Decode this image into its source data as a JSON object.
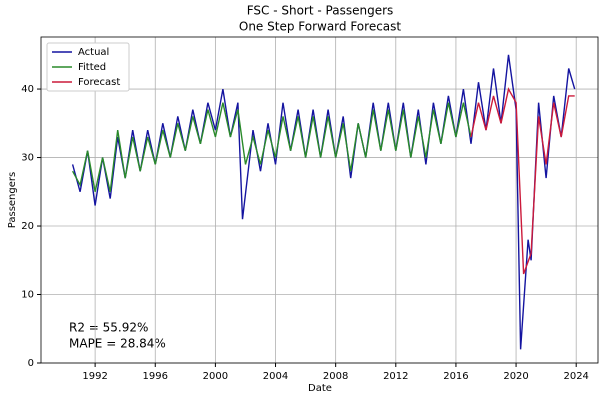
{
  "chart_data": {
    "type": "line",
    "title": "FSC - Short - Passengers",
    "subtitle": "One Step Forward Forecast",
    "x_label": "Date",
    "y_label": "Passengers",
    "xlim": [
      1988.4,
      2025.45
    ],
    "ylim": [
      0,
      47.6
    ],
    "xticks": [
      1992,
      1996,
      2000,
      2004,
      2008,
      2012,
      2016,
      2020,
      2024
    ],
    "yticks": [
      0,
      10,
      20,
      30,
      40
    ],
    "grid": true,
    "legend": "upper left",
    "annotations": [
      "R2 = 55.92%",
      "MAPE = 28.84%"
    ],
    "series": [
      {
        "name": "Actual",
        "color": "#1414a0",
        "x": [
          1990.5,
          1991,
          1991.5,
          1992,
          1992.5,
          1993,
          1993.5,
          1994,
          1994.5,
          1995,
          1995.5,
          1996,
          1996.5,
          1997,
          1997.5,
          1998,
          1998.5,
          1999,
          1999.5,
          2000,
          2000.5,
          2001,
          2001.5,
          2001.8,
          2002.5,
          2003,
          2003.5,
          2004,
          2004.5,
          2005,
          2005.5,
          2006,
          2006.5,
          2007,
          2007.5,
          2008,
          2008.5,
          2009,
          2009.5,
          2010,
          2010.5,
          2011,
          2011.5,
          2012,
          2012.5,
          2013,
          2013.5,
          2014,
          2014.5,
          2015,
          2015.5,
          2016,
          2016.5,
          2017,
          2017.5,
          2018,
          2018.5,
          2019,
          2019.5,
          2020,
          2020.3,
          2020.8,
          2021,
          2021.5,
          2022,
          2022.5,
          2023,
          2023.5,
          2023.9
        ],
        "values": [
          29,
          25,
          31,
          23,
          30,
          24,
          33,
          27,
          34,
          28,
          34,
          29,
          35,
          30,
          36,
          31,
          37,
          32,
          38,
          34,
          40,
          33,
          38,
          21,
          34,
          28,
          35,
          29,
          38,
          31,
          37,
          30,
          37,
          30,
          37,
          30,
          36,
          27,
          35,
          30,
          38,
          31,
          38,
          31,
          38,
          30,
          37,
          29,
          38,
          32,
          39,
          33,
          40,
          32,
          41,
          34,
          43,
          35,
          45,
          37,
          2,
          18,
          15,
          38,
          27,
          39,
          33,
          43,
          40
        ]
      },
      {
        "name": "Fitted",
        "color": "#2a8a2a",
        "x": [
          1990.5,
          1991,
          1991.5,
          1992,
          1992.5,
          1993,
          1993.5,
          1994,
          1994.5,
          1995,
          1995.5,
          1996,
          1996.5,
          1997,
          1997.5,
          1998,
          1998.5,
          1999,
          1999.5,
          2000,
          2000.5,
          2001,
          2001.5,
          2002,
          2002.5,
          2003,
          2003.5,
          2004,
          2004.5,
          2005,
          2005.5,
          2006,
          2006.5,
          2007,
          2007.5,
          2008,
          2008.5,
          2009,
          2009.5,
          2010,
          2010.5,
          2011,
          2011.5,
          2012,
          2012.5,
          2013,
          2013.5,
          2014,
          2014.5,
          2015,
          2015.5,
          2016,
          2016.5,
          2017
        ],
        "values": [
          28,
          26,
          31,
          25,
          30,
          25,
          34,
          27,
          33,
          28,
          33,
          29,
          34,
          30,
          35,
          31,
          36,
          32,
          37,
          33,
          38,
          33,
          37,
          29,
          33,
          29,
          34,
          30,
          36,
          31,
          36,
          30,
          36,
          30,
          36,
          30,
          35,
          28,
          35,
          30,
          37,
          31,
          37,
          31,
          37,
          30,
          36,
          30,
          37,
          32,
          38,
          33,
          38,
          33
        ]
      },
      {
        "name": "Forecast",
        "color": "#cc1a3a",
        "x": [
          2017,
          2017.5,
          2018,
          2018.5,
          2019,
          2019.5,
          2020,
          2020.5,
          2021,
          2021.5,
          2022,
          2022.5,
          2023,
          2023.5,
          2023.9
        ],
        "values": [
          33,
          38,
          34,
          39,
          35,
          40,
          38,
          13,
          16,
          36,
          29,
          38,
          33,
          39,
          39
        ]
      }
    ]
  }
}
